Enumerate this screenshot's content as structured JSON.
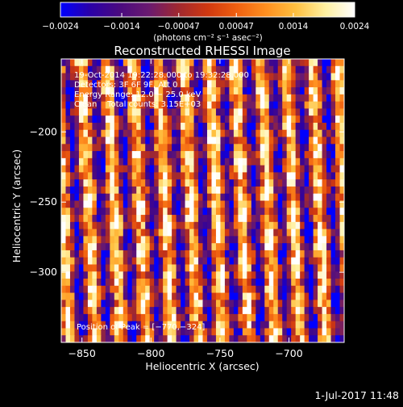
{
  "chart_data": {
    "type": "heatmap",
    "title": "Reconstructed RHESSI Image",
    "xlabel": "Heliocentric X (arcsec)",
    "ylabel": "Heliocentric Y (arcsec)",
    "xlim": [
      -865,
      -660
    ],
    "ylim": [
      -350,
      -148
    ],
    "xticks": [
      -850,
      -800,
      -750,
      -700
    ],
    "xtick_labels": [
      "−850",
      "−800",
      "−750",
      "−700"
    ],
    "yticks": [
      -200,
      -250,
      -300
    ],
    "ytick_labels": [
      "−200",
      "−250",
      "−300"
    ],
    "colorbar": {
      "min": -0.0024,
      "max": 0.0024,
      "ticks": [
        -0.0024,
        -0.0014,
        -0.00047,
        0.00047,
        0.0014,
        0.0024
      ],
      "tick_labels": [
        "−0.0024",
        "−0.0014",
        "−0.00047",
        "0.00047",
        "0.0014",
        "0.0024"
      ],
      "unit_label": "(photons cm⁻² s⁻¹ asec⁻²)",
      "colormap": [
        "#0000ff",
        "#2a00a8",
        "#4a0a80",
        "#6a1a70",
        "#a02830",
        "#d03810",
        "#f06010",
        "#ff9020",
        "#ffc040",
        "#fff0a0",
        "#ffffff"
      ]
    },
    "annotations": {
      "time_range": "19-Oct-2014 19:22:28.000 to 19:32:28.000",
      "detectors": "Detectors: 3F 6F 9F, Att 0",
      "energy_range": "Energy Range: 12.0 − 25.0 keV",
      "clean_counts": "Clean    Total counts: 3.15E+03",
      "peak": "Position of Peak = [−770,−324]"
    },
    "peak": [
      -770,
      -324
    ],
    "pattern": {
      "grid_cols": 64,
      "grid_rows": 40,
      "fringe_slope": 0.08,
      "fringe_period": 5.8
    }
  },
  "timestamp": "1-Jul-2017 11:48"
}
